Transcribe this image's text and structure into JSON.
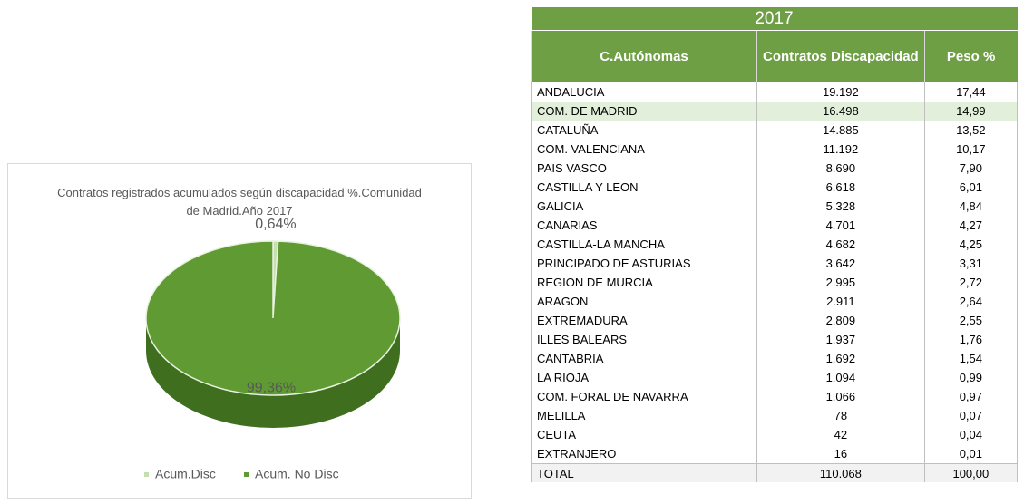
{
  "chart_data": {
    "type": "pie",
    "title": "Contratos registrados  acumulados según discapacidad %.Comunidad de Madrid.Año 2017",
    "series": [
      {
        "name": "Acum.Disc",
        "color": "#c5dfb0",
        "values": [
          0.64
        ],
        "value_labels": [
          "0,64%"
        ]
      },
      {
        "name": "Acum. No Disc",
        "color": "#5f9a32",
        "values": [
          99.36
        ],
        "value_labels": [
          "99,36%"
        ]
      }
    ]
  },
  "table": {
    "title": "2017",
    "header": [
      "C.Autónomas",
      "Contratos Discapacidad",
      "Peso %"
    ],
    "rows": [
      [
        "ANDALUCIA",
        "19.192",
        "17,44"
      ],
      [
        "COM. DE MADRID",
        "16.498",
        "14,99"
      ],
      [
        "CATALUÑA",
        "14.885",
        "13,52"
      ],
      [
        "COM. VALENCIANA",
        "11.192",
        "10,17"
      ],
      [
        "PAIS VASCO",
        "8.690",
        "7,90"
      ],
      [
        "CASTILLA Y LEON",
        "6.618",
        "6,01"
      ],
      [
        "GALICIA",
        "5.328",
        "4,84"
      ],
      [
        "CANARIAS",
        "4.701",
        "4,27"
      ],
      [
        "CASTILLA-LA MANCHA",
        "4.682",
        "4,25"
      ],
      [
        "PRINCIPADO DE ASTURIAS",
        "3.642",
        "3,31"
      ],
      [
        "REGION DE MURCIA",
        "2.995",
        "2,72"
      ],
      [
        "ARAGON",
        "2.911",
        "2,64"
      ],
      [
        "EXTREMADURA",
        "2.809",
        "2,55"
      ],
      [
        "ILLES BALEARS",
        "1.937",
        "1,76"
      ],
      [
        "CANTABRIA",
        "1.692",
        "1,54"
      ],
      [
        "LA RIOJA",
        "1.094",
        "0,99"
      ],
      [
        "COM. FORAL DE NAVARRA",
        "1.066",
        "0,97"
      ],
      [
        "MELILLA",
        "78",
        "0,07"
      ],
      [
        "CEUTA",
        "42",
        "0,04"
      ],
      [
        "EXTRANJERO",
        "16",
        "0,01"
      ]
    ],
    "total": [
      "TOTAL",
      "110.068",
      "100,00"
    ]
  }
}
